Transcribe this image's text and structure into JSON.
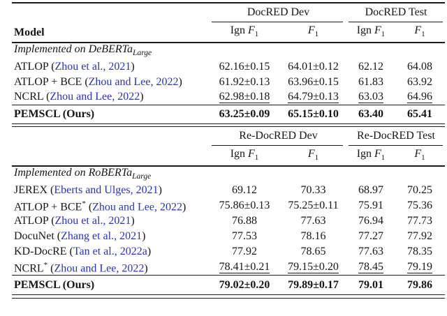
{
  "colors": {
    "citation_blue": "#2b31bb",
    "rule_black": "#1b1b1b",
    "background": "#ffffff"
  },
  "tables": [
    {
      "name": "docred-results",
      "model_header": "Model",
      "group_headers": [
        "DocRED Dev",
        "DocRED Test"
      ],
      "subheaders": [
        {
          "prefix": "Ign ",
          "sym": "F",
          "sub": "1"
        },
        {
          "prefix": "",
          "sym": "F",
          "sub": "1"
        },
        {
          "prefix": "Ign ",
          "sym": "F",
          "sub": "1"
        },
        {
          "prefix": "",
          "sym": "F",
          "sub": "1"
        }
      ],
      "section": {
        "text": "Implemented on DeBERTa",
        "subscript": "Large"
      },
      "rows": [
        {
          "model": "ATLOP",
          "sup": "",
          "citation": "Zhou et al., 2021",
          "values": [
            "62.16±0.15",
            "64.01±0.12",
            "62.12",
            "64.08"
          ],
          "underline": false
        },
        {
          "model": "ATLOP + BCE",
          "sup": "",
          "citation": "Zhou and Lee, 2022",
          "values": [
            "61.92±0.13",
            "63.96±0.15",
            "61.83",
            "63.92"
          ],
          "underline": false
        },
        {
          "model": "NCRL",
          "sup": "",
          "citation": "Zhou and Lee, 2022",
          "values": [
            "62.98±0.18",
            "64.79±0.13",
            "63.03",
            "64.96"
          ],
          "underline": true
        }
      ],
      "highlight_row": {
        "model": "PEMSCL (Ours)",
        "values": [
          "63.25±0.09",
          "65.15±0.10",
          "63.40",
          "65.41"
        ]
      }
    },
    {
      "name": "re-docred-results",
      "model_header": "",
      "group_headers": [
        "Re-DocRED Dev",
        "Re-DocRED Test"
      ],
      "subheaders": [
        {
          "prefix": "Ign ",
          "sym": "F",
          "sub": "1"
        },
        {
          "prefix": "",
          "sym": "F",
          "sub": "1"
        },
        {
          "prefix": "Ign ",
          "sym": "F",
          "sub": "1"
        },
        {
          "prefix": "",
          "sym": "F",
          "sub": "1"
        }
      ],
      "section": {
        "text": "Implemented on RoBERTa",
        "subscript": "Large"
      },
      "rows": [
        {
          "model": "JEREX",
          "sup": "",
          "citation": "Eberts and Ulges, 2021",
          "values": [
            "69.12",
            "70.33",
            "68.97",
            "70.25"
          ],
          "underline": false
        },
        {
          "model": "ATLOP + BCE",
          "sup": "*",
          "citation": "Zhou and Lee, 2022",
          "values": [
            "75.86±0.13",
            "75.25±0.11",
            "75.91",
            "75.36"
          ],
          "underline": false
        },
        {
          "model": "ATLOP",
          "sup": "",
          "citation": "Zhou et al., 2021",
          "values": [
            "76.88",
            "77.63",
            "76.94",
            "77.73"
          ],
          "underline": false
        },
        {
          "model": "DocuNet",
          "sup": "",
          "citation": "Zhang et al., 2021",
          "values": [
            "77.53",
            "78.16",
            "77.27",
            "77.92"
          ],
          "underline": false
        },
        {
          "model": "KD-DocRE",
          "sup": "",
          "citation": "Tan et al., 2022a",
          "values": [
            "77.92",
            "78.65",
            "77.63",
            "78.35"
          ],
          "underline": false
        },
        {
          "model": "NCRL",
          "sup": "*",
          "citation": "Zhou and Lee, 2022",
          "values": [
            "78.41±0.21",
            "79.15±0.20",
            "78.45",
            "79.19"
          ],
          "underline": true
        }
      ],
      "highlight_row": {
        "model": "PEMSCL (Ours)",
        "values": [
          "79.02±0.20",
          "79.89±0.17",
          "79.01",
          "79.86"
        ]
      }
    }
  ]
}
